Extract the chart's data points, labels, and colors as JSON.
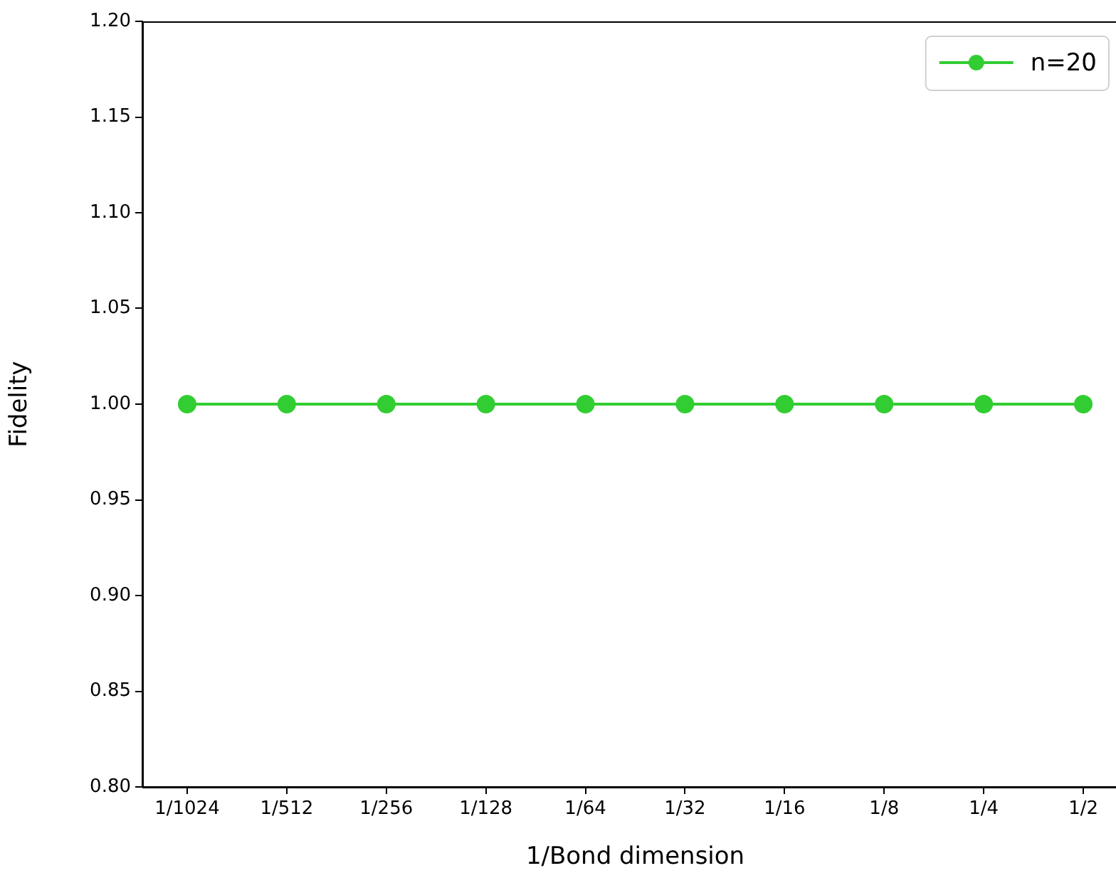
{
  "chart_data": {
    "type": "line",
    "xlabel": "1/Bond dimension",
    "ylabel": "Fidelity",
    "categories": [
      "1/1024",
      "1/512",
      "1/256",
      "1/128",
      "1/64",
      "1/32",
      "1/16",
      "1/8",
      "1/4",
      "1/2"
    ],
    "series": [
      {
        "name": "n=20",
        "color": "#32cd32",
        "values": [
          1,
          1,
          1,
          1,
          1,
          1,
          1,
          1,
          1,
          1
        ]
      }
    ],
    "ylim": [
      0.8,
      1.2
    ],
    "yticks": [
      {
        "value": 0.8,
        "label": "0.80"
      },
      {
        "value": 0.85,
        "label": "0.85"
      },
      {
        "value": 0.9,
        "label": "0.90"
      },
      {
        "value": 0.95,
        "label": "0.95"
      },
      {
        "value": 1,
        "label": "1.00"
      },
      {
        "value": 1.05,
        "label": "1.05"
      },
      {
        "value": 1.1,
        "label": "1.10"
      },
      {
        "value": 1.15,
        "label": "1.15"
      },
      {
        "value": 1.2,
        "label": "1.20"
      }
    ],
    "legend": "top right",
    "marker": "circle",
    "line_style": "solid",
    "grid": false
  }
}
